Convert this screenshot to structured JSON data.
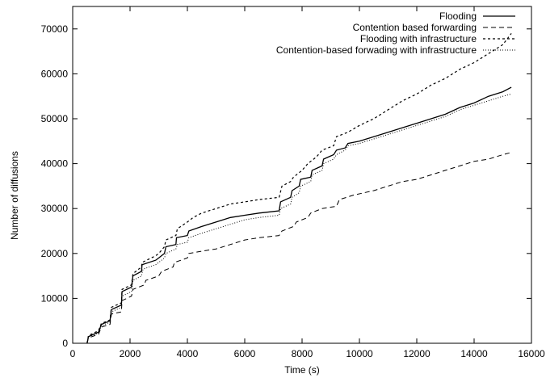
{
  "chart_data": {
    "type": "line",
    "title": "",
    "xlabel": "Time (s)",
    "ylabel": "Number of diffusions",
    "xlim": [
      0,
      16000
    ],
    "ylim": [
      0,
      75000
    ],
    "xticks": [
      0,
      2000,
      4000,
      6000,
      8000,
      10000,
      12000,
      14000,
      16000
    ],
    "yticks": [
      0,
      10000,
      20000,
      30000,
      40000,
      50000,
      60000,
      70000
    ],
    "grid": false,
    "legend_position": "top-right",
    "series": [
      {
        "name": "Flooding",
        "line_style": "solid",
        "color": "#000000",
        "points": [
          [
            500,
            0
          ],
          [
            550,
            1500
          ],
          [
            900,
            2500
          ],
          [
            1000,
            4200
          ],
          [
            1300,
            5000
          ],
          [
            1350,
            7500
          ],
          [
            1700,
            8500
          ],
          [
            1720,
            11500
          ],
          [
            2050,
            12500
          ],
          [
            2100,
            15000
          ],
          [
            2400,
            16000
          ],
          [
            2420,
            17500
          ],
          [
            2900,
            18500
          ],
          [
            3000,
            19000
          ],
          [
            3200,
            20000
          ],
          [
            3250,
            21500
          ],
          [
            3600,
            22000
          ],
          [
            3620,
            23500
          ],
          [
            4000,
            24000
          ],
          [
            4050,
            25000
          ],
          [
            4500,
            26000
          ],
          [
            5000,
            27000
          ],
          [
            5500,
            28000
          ],
          [
            6000,
            28500
          ],
          [
            6500,
            29000
          ],
          [
            7200,
            29500
          ],
          [
            7250,
            31500
          ],
          [
            7600,
            32500
          ],
          [
            7650,
            34000
          ],
          [
            7900,
            35000
          ],
          [
            7950,
            36500
          ],
          [
            8300,
            37000
          ],
          [
            8350,
            38500
          ],
          [
            8700,
            39500
          ],
          [
            8750,
            41000
          ],
          [
            9100,
            42000
          ],
          [
            9200,
            43000
          ],
          [
            9500,
            43500
          ],
          [
            9600,
            44500
          ],
          [
            10000,
            45000
          ],
          [
            10500,
            46000
          ],
          [
            11000,
            47000
          ],
          [
            11500,
            48000
          ],
          [
            12000,
            49000
          ],
          [
            12500,
            50000
          ],
          [
            13000,
            51000
          ],
          [
            13500,
            52500
          ],
          [
            14000,
            53500
          ],
          [
            14500,
            55000
          ],
          [
            15000,
            56000
          ],
          [
            15300,
            57000
          ]
        ]
      },
      {
        "name": "Contention based forwarding",
        "line_style": "dashed",
        "color": "#000000",
        "points": [
          [
            500,
            0
          ],
          [
            550,
            1200
          ],
          [
            900,
            2000
          ],
          [
            1000,
            3600
          ],
          [
            1300,
            4200
          ],
          [
            1350,
            6500
          ],
          [
            1700,
            7000
          ],
          [
            1720,
            9500
          ],
          [
            2050,
            10500
          ],
          [
            2100,
            12000
          ],
          [
            2500,
            13000
          ],
          [
            2550,
            14000
          ],
          [
            3000,
            15000
          ],
          [
            3100,
            16000
          ],
          [
            3500,
            17000
          ],
          [
            3550,
            18000
          ],
          [
            4000,
            19000
          ],
          [
            4050,
            20000
          ],
          [
            4500,
            20500
          ],
          [
            5000,
            21000
          ],
          [
            5500,
            22000
          ],
          [
            6000,
            23000
          ],
          [
            6500,
            23500
          ],
          [
            7200,
            24000
          ],
          [
            7300,
            25000
          ],
          [
            7700,
            26000
          ],
          [
            7800,
            27000
          ],
          [
            8200,
            28000
          ],
          [
            8300,
            29000
          ],
          [
            8700,
            30000
          ],
          [
            9200,
            30500
          ],
          [
            9300,
            32000
          ],
          [
            9800,
            33000
          ],
          [
            10500,
            34000
          ],
          [
            11000,
            35000
          ],
          [
            11500,
            36000
          ],
          [
            12000,
            36500
          ],
          [
            12500,
            37500
          ],
          [
            13000,
            38500
          ],
          [
            13500,
            39500
          ],
          [
            14000,
            40500
          ],
          [
            14500,
            41000
          ],
          [
            15000,
            42000
          ],
          [
            15300,
            42500
          ]
        ]
      },
      {
        "name": "Flooding with infrastructure",
        "line_style": "short-dashed",
        "color": "#000000",
        "points": [
          [
            500,
            0
          ],
          [
            550,
            1700
          ],
          [
            900,
            2800
          ],
          [
            1000,
            4400
          ],
          [
            1300,
            5200
          ],
          [
            1350,
            8000
          ],
          [
            1700,
            9000
          ],
          [
            1720,
            12000
          ],
          [
            2050,
            13000
          ],
          [
            2100,
            15500
          ],
          [
            2400,
            17000
          ],
          [
            2420,
            18000
          ],
          [
            2900,
            19500
          ],
          [
            3000,
            20000
          ],
          [
            3200,
            21500
          ],
          [
            3250,
            23000
          ],
          [
            3600,
            24000
          ],
          [
            3650,
            25500
          ],
          [
            4000,
            27000
          ],
          [
            4200,
            28000
          ],
          [
            4500,
            29000
          ],
          [
            5000,
            30000
          ],
          [
            5500,
            31000
          ],
          [
            6000,
            31500
          ],
          [
            6500,
            32000
          ],
          [
            7200,
            32500
          ],
          [
            7300,
            35000
          ],
          [
            7600,
            36000
          ],
          [
            7700,
            37000
          ],
          [
            8000,
            38500
          ],
          [
            8200,
            40000
          ],
          [
            8500,
            41500
          ],
          [
            8700,
            43000
          ],
          [
            9100,
            44000
          ],
          [
            9200,
            46000
          ],
          [
            9600,
            47000
          ],
          [
            10000,
            48500
          ],
          [
            10500,
            50000
          ],
          [
            11000,
            52000
          ],
          [
            11500,
            54000
          ],
          [
            12000,
            55500
          ],
          [
            12500,
            57500
          ],
          [
            13000,
            59000
          ],
          [
            13500,
            61000
          ],
          [
            14000,
            62500
          ],
          [
            14500,
            64500
          ],
          [
            15000,
            66500
          ],
          [
            15300,
            69000
          ]
        ]
      },
      {
        "name": "Contention-based forwading with infrastructure",
        "line_style": "dotted",
        "color": "#000000",
        "points": [
          [
            500,
            0
          ],
          [
            550,
            1400
          ],
          [
            900,
            2300
          ],
          [
            1000,
            3900
          ],
          [
            1300,
            4700
          ],
          [
            1350,
            7000
          ],
          [
            1700,
            8000
          ],
          [
            1720,
            10500
          ],
          [
            2050,
            11500
          ],
          [
            2100,
            14000
          ],
          [
            2400,
            15000
          ],
          [
            2450,
            16500
          ],
          [
            2900,
            17500
          ],
          [
            3000,
            18000
          ],
          [
            3200,
            19000
          ],
          [
            3250,
            20000
          ],
          [
            3600,
            21000
          ],
          [
            3650,
            22000
          ],
          [
            4000,
            22500
          ],
          [
            4050,
            23500
          ],
          [
            4500,
            24500
          ],
          [
            5000,
            25500
          ],
          [
            5500,
            26500
          ],
          [
            6000,
            27500
          ],
          [
            6500,
            28000
          ],
          [
            7200,
            28500
          ],
          [
            7250,
            30000
          ],
          [
            7600,
            31000
          ],
          [
            7650,
            32500
          ],
          [
            7900,
            33500
          ],
          [
            7950,
            35000
          ],
          [
            8300,
            36000
          ],
          [
            8350,
            37500
          ],
          [
            8700,
            38500
          ],
          [
            8750,
            40000
          ],
          [
            9100,
            41000
          ],
          [
            9200,
            42000
          ],
          [
            9500,
            43000
          ],
          [
            9600,
            44000
          ],
          [
            10000,
            44500
          ],
          [
            10500,
            45500
          ],
          [
            11000,
            46500
          ],
          [
            11500,
            47500
          ],
          [
            12000,
            48500
          ],
          [
            12500,
            49500
          ],
          [
            13000,
            50500
          ],
          [
            13500,
            52000
          ],
          [
            14000,
            53000
          ],
          [
            14500,
            54000
          ],
          [
            15000,
            55000
          ],
          [
            15300,
            55500
          ]
        ]
      }
    ]
  }
}
